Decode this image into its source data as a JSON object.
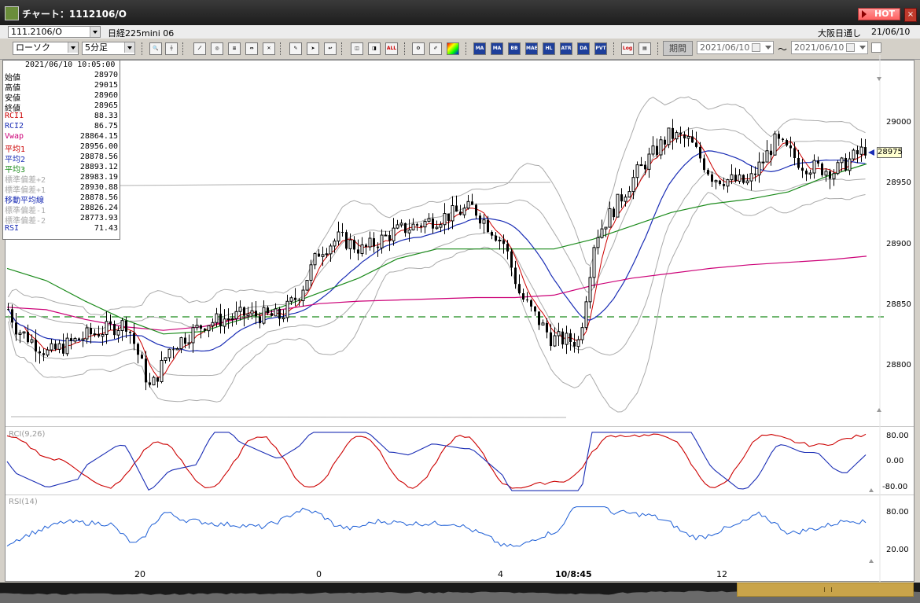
{
  "window": {
    "title": "チャート：1112106/O",
    "hot_label": "HOT",
    "close_label": "×"
  },
  "symbol_bar": {
    "code": "111.2106/O",
    "name": "日経225mini 06",
    "session": "大阪日通し",
    "date": "21/06/10"
  },
  "toolbar": {
    "chart_type": "ローソク",
    "interval": "5分足",
    "period_label": "期間",
    "date_from": "2021/06/10",
    "date_to": "2021/06/10",
    "tilde": "～",
    "indicator_buttons": [
      "ALL",
      "MA",
      "MA",
      "BB",
      "MAE",
      "HL",
      "ATR",
      "DA",
      "PVT",
      "Log"
    ]
  },
  "info_panel": {
    "timestamp": "2021/06/10 10:05:00",
    "rows": [
      {
        "label": "始値",
        "value": "28970",
        "color": "#000000"
      },
      {
        "label": "高値",
        "value": "29015",
        "color": "#000000"
      },
      {
        "label": "安値",
        "value": "28960",
        "color": "#000000"
      },
      {
        "label": "終値",
        "value": "28965",
        "color": "#000000"
      },
      {
        "label": "RCI1",
        "value": "88.33",
        "color": "#cc0000"
      },
      {
        "label": "RCI2",
        "value": "86.75",
        "color": "#1a2db5"
      },
      {
        "label": "Vwap",
        "value": "28864.15",
        "color": "#cc0077"
      },
      {
        "label": "平均1",
        "value": "28956.00",
        "color": "#cc0000"
      },
      {
        "label": "平均2",
        "value": "28878.56",
        "color": "#1a2db5"
      },
      {
        "label": "平均3",
        "value": "28893.12",
        "color": "#1a8a1a"
      },
      {
        "label": "標準偏差+2",
        "value": "28983.19",
        "color": "#aaaaaa"
      },
      {
        "label": "標準偏差+1",
        "value": "28930.88",
        "color": "#aaaaaa"
      },
      {
        "label": "移動平均線",
        "value": "28878.56",
        "color": "#1a2db5"
      },
      {
        "label": "標準偏差-1",
        "value": "28826.24",
        "color": "#aaaaaa"
      },
      {
        "label": "標準偏差-2",
        "value": "28773.93",
        "color": "#aaaaaa"
      },
      {
        "label": "RSI",
        "value": "71.43",
        "color": "#1a2db5"
      }
    ]
  },
  "price_axis": [
    "29000",
    "28950",
    "28900",
    "28850",
    "28800"
  ],
  "last_price": "28975",
  "rci_panel": {
    "label": "RCI(9,26)",
    "axis": [
      "80.00",
      "0.00",
      "-80.00"
    ]
  },
  "rsi_panel": {
    "label": "RSI(14)",
    "axis": [
      "80.00",
      "20.00"
    ]
  },
  "time_axis": [
    {
      "label": "20",
      "bold": false
    },
    {
      "label": "0",
      "bold": false
    },
    {
      "label": "4",
      "bold": false
    },
    {
      "label": "10/8:45",
      "bold": true
    },
    {
      "label": "12",
      "bold": false
    }
  ],
  "colors": {
    "candle": "#000000",
    "ma_short": "#cc0000",
    "ma_mid": "#1a2db5",
    "ma_long": "#1a8a1a",
    "vwap": "#cc0077",
    "bollinger": "#aaaaaa",
    "baseline": "#1a8a1a",
    "rsi": "#1e5fd6"
  },
  "chart_data": {
    "type": "line",
    "x_ticks": [
      "20",
      "0",
      "4",
      "10/8:45",
      "12"
    ],
    "ylim": [
      28765,
      29045
    ],
    "series": [
      {
        "name": "Vwap",
        "values": [
          28848,
          28846,
          28838,
          28832,
          28829,
          28832,
          28839,
          28846,
          28851,
          28853,
          28854,
          28855,
          28856,
          28856,
          28858,
          28866,
          28872,
          28876,
          28880,
          28883,
          28885,
          28887,
          28890
        ]
      },
      {
        "name": "平均3",
        "values": [
          28880,
          28870,
          28853,
          28838,
          28826,
          28828,
          28838,
          28848,
          28860,
          28872,
          28888,
          28896,
          28896,
          28896,
          28896,
          28904,
          28915,
          28926,
          28933,
          28937,
          28943,
          28956,
          28966
        ]
      }
    ],
    "rci": [
      75,
      5,
      -80,
      60,
      -80,
      80,
      -80,
      80,
      -80,
      80,
      -80,
      -60,
      80,
      80,
      -80,
      80,
      50,
      80
    ]
  }
}
